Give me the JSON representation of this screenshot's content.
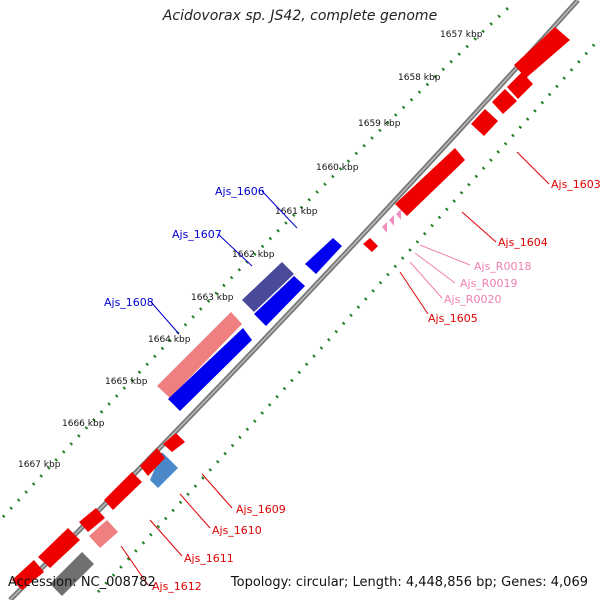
{
  "title": "Acidovorax sp. JS42, complete genome",
  "accession_label": "Accession: NC_008782",
  "topology_label": "Topology: circular; Length: 4,448,856 bp; Genes: 4,069",
  "ticks": [
    "1657 kbp",
    "1658 kbp",
    "1659 kbp",
    "1660 kbp",
    "1661 kbp",
    "1662 kbp",
    "1663 kbp",
    "1664 kbp",
    "1665 kbp",
    "1666 kbp",
    "1667 kbp"
  ],
  "gene_labels": [
    {
      "name": "Ajs_1603",
      "color": "#e00000"
    },
    {
      "name": "Ajs_1604",
      "color": "#e00000"
    },
    {
      "name": "Ajs_R0018",
      "color": "#f080b0"
    },
    {
      "name": "Ajs_R0019",
      "color": "#f080b0"
    },
    {
      "name": "Ajs_R0020",
      "color": "#f080b0"
    },
    {
      "name": "Ajs_1605",
      "color": "#e00000"
    },
    {
      "name": "Ajs_1606",
      "color": "#0000d0"
    },
    {
      "name": "Ajs_1607",
      "color": "#0000d0"
    },
    {
      "name": "Ajs_1608",
      "color": "#0000d0"
    },
    {
      "name": "Ajs_1609",
      "color": "#e00000"
    },
    {
      "name": "Ajs_1610",
      "color": "#e00000"
    },
    {
      "name": "Ajs_1611",
      "color": "#e00000"
    },
    {
      "name": "Ajs_1612",
      "color": "#e00000"
    }
  ],
  "colors": {
    "cds_forward": "#ee0000",
    "cds_forward_light": "#f08080",
    "cds_reverse": "#0000ee",
    "cds_reverse_dark": "#4a4a9a",
    "cds_other": "#4080c0",
    "rna": "#f090c0",
    "backbone": "#888888",
    "tick_dots": "#208020"
  }
}
